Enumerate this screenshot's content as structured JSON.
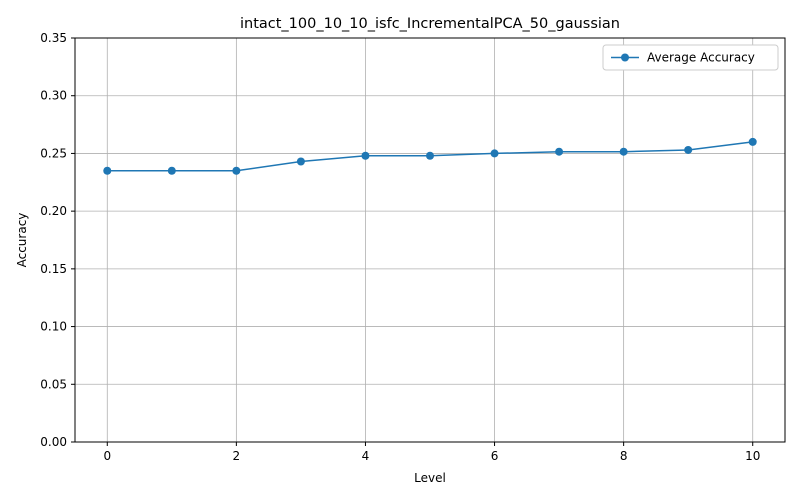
{
  "chart_data": {
    "type": "line",
    "title": "intact_100_10_10_isfc_IncrementalPCA_50_gaussian",
    "xlabel": "Level",
    "ylabel": "Accuracy",
    "xlim": [
      -0.5,
      10.5
    ],
    "ylim": [
      0,
      0.35
    ],
    "xticks": [
      0,
      2,
      4,
      6,
      8,
      10
    ],
    "xtick_labels": [
      "0",
      "2",
      "4",
      "6",
      "8",
      "10"
    ],
    "yticks": [
      0,
      0.05,
      0.1,
      0.15,
      0.2,
      0.25,
      0.3,
      0.35
    ],
    "ytick_labels": [
      "0.00",
      "0.05",
      "0.10",
      "0.15",
      "0.20",
      "0.25",
      "0.30",
      "0.35"
    ],
    "grid": true,
    "legend_position": "top-right",
    "series": [
      {
        "name": "Average Accuracy",
        "color": "#1f77b4",
        "marker": "circle",
        "x": [
          0,
          1,
          2,
          3,
          4,
          5,
          6,
          7,
          8,
          9,
          10
        ],
        "values": [
          0.235,
          0.235,
          0.235,
          0.243,
          0.248,
          0.248,
          0.25,
          0.2515,
          0.2515,
          0.253,
          0.26
        ]
      }
    ]
  }
}
